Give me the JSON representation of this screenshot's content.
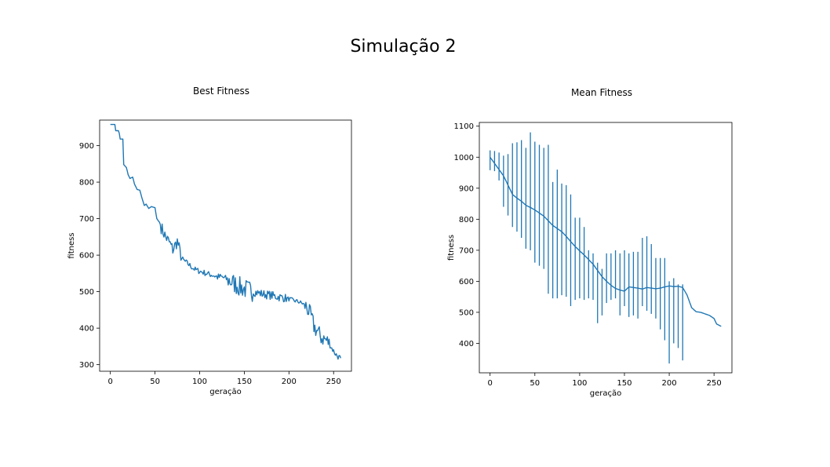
{
  "figure": {
    "suptitle": "Simulação 2"
  },
  "colors": {
    "series": "#1f77b4",
    "axes": "#000000"
  },
  "chart_data": [
    {
      "type": "line",
      "title": "Best Fitness",
      "xlabel": "geração",
      "ylabel": "fitness",
      "xlim": [
        -12,
        270
      ],
      "ylim": [
        282,
        970
      ],
      "xticks": [
        0,
        50,
        100,
        150,
        200,
        250
      ],
      "yticks": [
        300,
        400,
        500,
        600,
        700,
        800,
        900
      ],
      "grid": false,
      "anchors": [
        [
          0,
          958
        ],
        [
          5,
          958
        ],
        [
          6,
          941
        ],
        [
          9,
          941
        ],
        [
          10,
          934
        ],
        [
          11,
          918
        ],
        [
          14,
          918
        ],
        [
          15,
          848
        ],
        [
          18,
          840
        ],
        [
          20,
          820
        ],
        [
          22,
          810
        ],
        [
          25,
          814
        ],
        [
          27,
          795
        ],
        [
          30,
          780
        ],
        [
          33,
          778
        ],
        [
          35,
          760
        ],
        [
          38,
          736
        ],
        [
          40,
          740
        ],
        [
          43,
          728
        ],
        [
          46,
          733
        ],
        [
          50,
          730
        ],
        [
          52,
          700
        ],
        [
          55,
          690
        ],
        [
          58,
          670
        ],
        [
          62,
          650
        ],
        [
          66,
          635
        ],
        [
          70,
          615
        ],
        [
          75,
          638
        ],
        [
          80,
          590
        ],
        [
          85,
          580
        ],
        [
          90,
          570
        ],
        [
          95,
          560
        ],
        [
          100,
          556
        ],
        [
          105,
          552
        ],
        [
          110,
          548
        ],
        [
          115,
          545
        ],
        [
          120,
          540
        ],
        [
          125,
          540
        ],
        [
          130,
          535
        ],
        [
          135,
          528
        ],
        [
          140,
          520
        ],
        [
          145,
          513
        ],
        [
          150,
          508
        ],
        [
          155,
          504
        ],
        [
          160,
          500
        ],
        [
          165,
          497
        ],
        [
          170,
          494
        ],
        [
          175,
          492
        ],
        [
          180,
          490
        ],
        [
          185,
          487
        ],
        [
          190,
          485
        ],
        [
          195,
          483
        ],
        [
          200,
          480
        ],
        [
          205,
          476
        ],
        [
          210,
          473
        ],
        [
          215,
          468
        ],
        [
          220,
          458
        ],
        [
          225,
          430
        ],
        [
          228,
          405
        ],
        [
          232,
          390
        ],
        [
          236,
          375
        ],
        [
          240,
          370
        ],
        [
          244,
          362
        ],
        [
          248,
          345
        ],
        [
          252,
          330
        ],
        [
          255,
          322
        ],
        [
          258,
          318
        ]
      ],
      "noise_bands": [
        [
          57,
          80,
          18
        ],
        [
          80,
          118,
          8
        ],
        [
          118,
          132,
          10
        ],
        [
          132,
          160,
          28
        ],
        [
          160,
          198,
          12
        ],
        [
          198,
          218,
          6
        ],
        [
          218,
          246,
          24
        ],
        [
          246,
          258,
          8
        ]
      ]
    },
    {
      "type": "line",
      "title": "Mean Fitness",
      "xlabel": "geração",
      "ylabel": "fitness",
      "xlim": [
        -12,
        270
      ],
      "ylim": [
        305,
        1112
      ],
      "xticks": [
        0,
        50,
        100,
        150,
        200,
        250
      ],
      "yticks": [
        400,
        500,
        600,
        700,
        800,
        900,
        1000,
        1100
      ],
      "grid": false,
      "anchors": [
        [
          0,
          1000
        ],
        [
          5,
          980
        ],
        [
          10,
          960
        ],
        [
          15,
          940
        ],
        [
          20,
          910
        ],
        [
          25,
          880
        ],
        [
          30,
          868
        ],
        [
          35,
          858
        ],
        [
          40,
          845
        ],
        [
          45,
          838
        ],
        [
          50,
          830
        ],
        [
          55,
          820
        ],
        [
          60,
          810
        ],
        [
          65,
          795
        ],
        [
          70,
          780
        ],
        [
          75,
          770
        ],
        [
          80,
          760
        ],
        [
          85,
          745
        ],
        [
          90,
          728
        ],
        [
          95,
          712
        ],
        [
          100,
          698
        ],
        [
          105,
          685
        ],
        [
          110,
          670
        ],
        [
          115,
          655
        ],
        [
          120,
          635
        ],
        [
          125,
          615
        ],
        [
          130,
          600
        ],
        [
          135,
          587
        ],
        [
          140,
          577
        ],
        [
          145,
          572
        ],
        [
          150,
          568
        ],
        [
          155,
          582
        ],
        [
          160,
          580
        ],
        [
          165,
          578
        ],
        [
          170,
          575
        ],
        [
          175,
          580
        ],
        [
          180,
          578
        ],
        [
          185,
          576
        ],
        [
          190,
          578
        ],
        [
          195,
          582
        ],
        [
          200,
          585
        ],
        [
          205,
          583
        ],
        [
          210,
          584
        ],
        [
          215,
          580
        ],
        [
          220,
          555
        ],
        [
          225,
          515
        ],
        [
          230,
          502
        ],
        [
          235,
          500
        ],
        [
          240,
          495
        ],
        [
          245,
          490
        ],
        [
          250,
          480
        ],
        [
          253,
          462
        ],
        [
          258,
          455
        ]
      ],
      "error_bars": [
        [
          0,
          958,
          1022
        ],
        [
          5,
          955,
          1020
        ],
        [
          10,
          925,
          1015
        ],
        [
          15,
          840,
          1005
        ],
        [
          20,
          812,
          1010
        ],
        [
          25,
          775,
          1045
        ],
        [
          30,
          760,
          1048
        ],
        [
          35,
          740,
          1055
        ],
        [
          40,
          705,
          1030
        ],
        [
          45,
          700,
          1080
        ],
        [
          50,
          660,
          1050
        ],
        [
          55,
          650,
          1040
        ],
        [
          60,
          640,
          1030
        ],
        [
          65,
          560,
          1040
        ],
        [
          70,
          545,
          920
        ],
        [
          75,
          545,
          960
        ],
        [
          80,
          555,
          915
        ],
        [
          85,
          550,
          910
        ],
        [
          90,
          520,
          880
        ],
        [
          95,
          540,
          805
        ],
        [
          100,
          545,
          805
        ],
        [
          105,
          540,
          775
        ],
        [
          110,
          545,
          700
        ],
        [
          115,
          540,
          690
        ],
        [
          120,
          465,
          660
        ],
        [
          125,
          490,
          640
        ],
        [
          130,
          530,
          690
        ],
        [
          135,
          540,
          690
        ],
        [
          140,
          545,
          700
        ],
        [
          145,
          490,
          690
        ],
        [
          150,
          520,
          700
        ],
        [
          155,
          485,
          690
        ],
        [
          160,
          490,
          695
        ],
        [
          165,
          480,
          695
        ],
        [
          170,
          520,
          740
        ],
        [
          175,
          505,
          745
        ],
        [
          180,
          495,
          720
        ],
        [
          185,
          480,
          675
        ],
        [
          190,
          445,
          675
        ],
        [
          195,
          410,
          675
        ],
        [
          200,
          335,
          600
        ],
        [
          205,
          400,
          610
        ],
        [
          210,
          385,
          590
        ],
        [
          215,
          345,
          590
        ]
      ]
    }
  ]
}
